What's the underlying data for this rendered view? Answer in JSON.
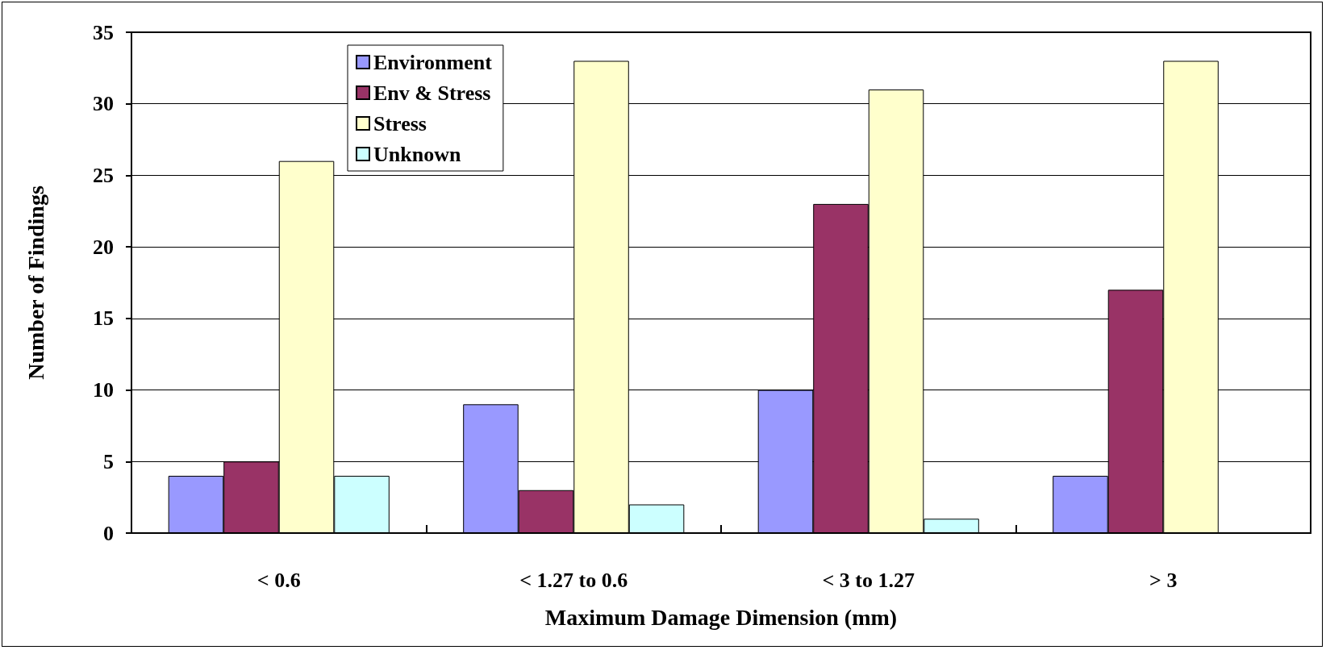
{
  "chart_data": {
    "type": "bar",
    "xlabel": "Maximum Damage Dimension (mm)",
    "ylabel": "Number of Findings",
    "categories": [
      "< 0.6",
      "< 1.27 to 0.6",
      "< 3 to 1.27",
      "> 3"
    ],
    "series": [
      {
        "name": "Environment",
        "color": "#9999ff",
        "values": [
          4,
          9,
          10,
          4
        ]
      },
      {
        "name": "Env & Stress",
        "color": "#993366",
        "values": [
          5,
          3,
          23,
          17
        ]
      },
      {
        "name": "Stress",
        "color": "#ffffcc",
        "values": [
          26,
          33,
          31,
          33
        ]
      },
      {
        "name": "Unknown",
        "color": "#ccffff",
        "values": [
          4,
          2,
          1,
          null
        ]
      }
    ],
    "ylim": [
      0,
      35
    ],
    "yticks": [
      0,
      5,
      10,
      15,
      20,
      25,
      30,
      35
    ],
    "grid": "y",
    "legend": "top left"
  }
}
